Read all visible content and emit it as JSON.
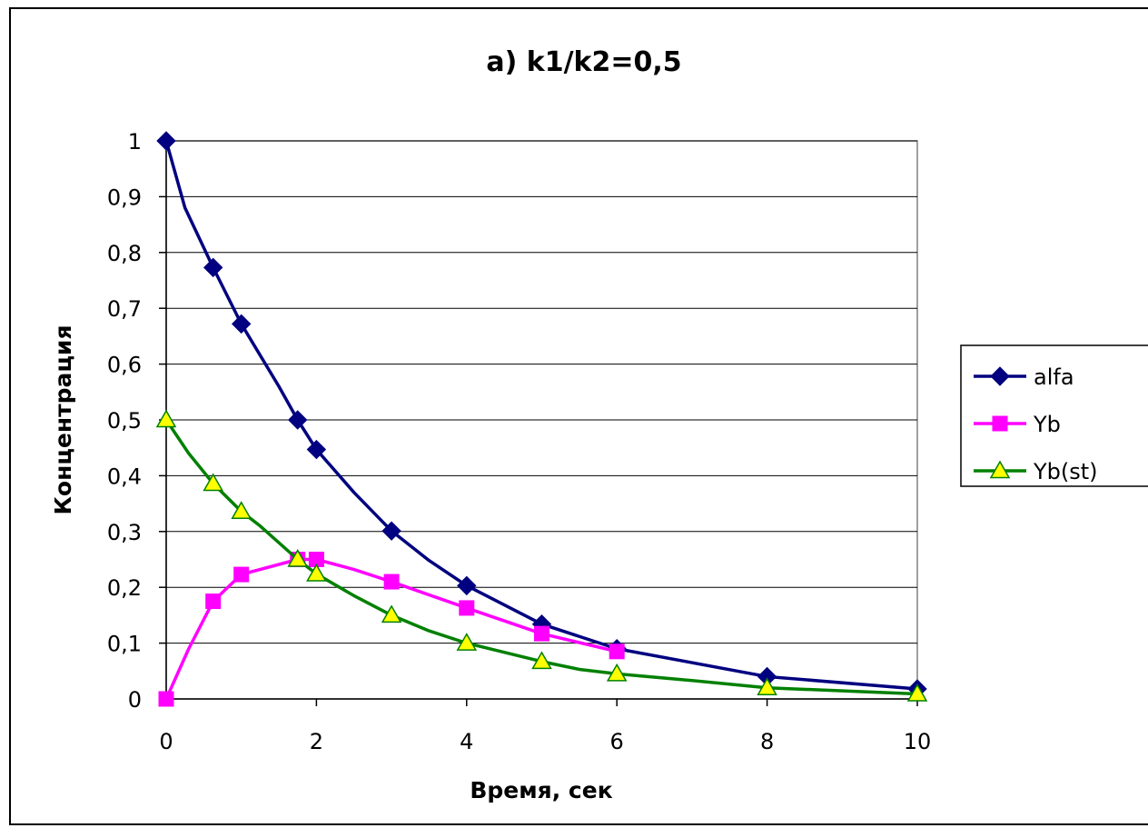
{
  "chart_data": {
    "type": "line",
    "title": "a) k1/k2=0,5",
    "xlabel": "Время, сек",
    "ylabel": "Концентрация",
    "xlim": [
      0,
      10
    ],
    "ylim": [
      0,
      1
    ],
    "x_ticks": [
      "0",
      "2",
      "4",
      "6",
      "8",
      "10"
    ],
    "y_ticks": [
      "0",
      "0,1",
      "0,2",
      "0,3",
      "0,4",
      "0,5",
      "0,6",
      "0,7",
      "0,8",
      "0,9",
      "1"
    ],
    "grid": "horizontal",
    "legend_position": "right",
    "series": [
      {
        "name": "alfa",
        "color": "#000080",
        "marker": "diamond",
        "x": [
          0,
          0.625,
          1,
          1.75,
          2,
          3,
          4,
          5,
          6,
          8,
          10
        ],
        "y": [
          1,
          0.773,
          0.672,
          0.5,
          0.447,
          0.301,
          0.203,
          0.134,
          0.09,
          0.04,
          0.018
        ],
        "curve_x": [
          0,
          0.25,
          0.625,
          1,
          1.5,
          1.75,
          2,
          2.5,
          3,
          3.5,
          4,
          5,
          6,
          7,
          8,
          10
        ],
        "curve_y": [
          1,
          0.88,
          0.773,
          0.672,
          0.56,
          0.5,
          0.447,
          0.37,
          0.301,
          0.248,
          0.203,
          0.134,
          0.09,
          0.065,
          0.04,
          0.018
        ]
      },
      {
        "name": "Yb",
        "color": "#ff00ff",
        "marker": "square",
        "x": [
          0,
          0.625,
          1,
          1.75,
          2,
          3,
          4,
          5,
          6
        ],
        "y": [
          0,
          0.175,
          0.223,
          0.25,
          0.25,
          0.21,
          0.163,
          0.117,
          0.085
        ],
        "curve_x": [
          0,
          0.3,
          0.625,
          1,
          1.75,
          2,
          2.5,
          3,
          4,
          5,
          6
        ],
        "curve_y": [
          0,
          0.09,
          0.175,
          0.223,
          0.25,
          0.25,
          0.232,
          0.21,
          0.163,
          0.117,
          0.085
        ]
      },
      {
        "name": "Yb(st)",
        "color": "#008000",
        "marker": "triangle",
        "marker_fill": "#ffff00",
        "x": [
          0,
          0.625,
          1,
          1.75,
          2,
          3,
          4,
          5,
          6,
          8,
          10
        ],
        "y": [
          0.5,
          0.386,
          0.336,
          0.25,
          0.224,
          0.15,
          0.1,
          0.067,
          0.045,
          0.02,
          0.009
        ],
        "curve_x": [
          0,
          0.3,
          0.625,
          1,
          1.25,
          1.75,
          2,
          2.5,
          3,
          3.5,
          4,
          5,
          5.5,
          6,
          7,
          8,
          10
        ],
        "curve_y": [
          0.5,
          0.44,
          0.386,
          0.336,
          0.31,
          0.25,
          0.224,
          0.185,
          0.15,
          0.122,
          0.1,
          0.067,
          0.053,
          0.045,
          0.033,
          0.02,
          0.009
        ]
      }
    ]
  }
}
